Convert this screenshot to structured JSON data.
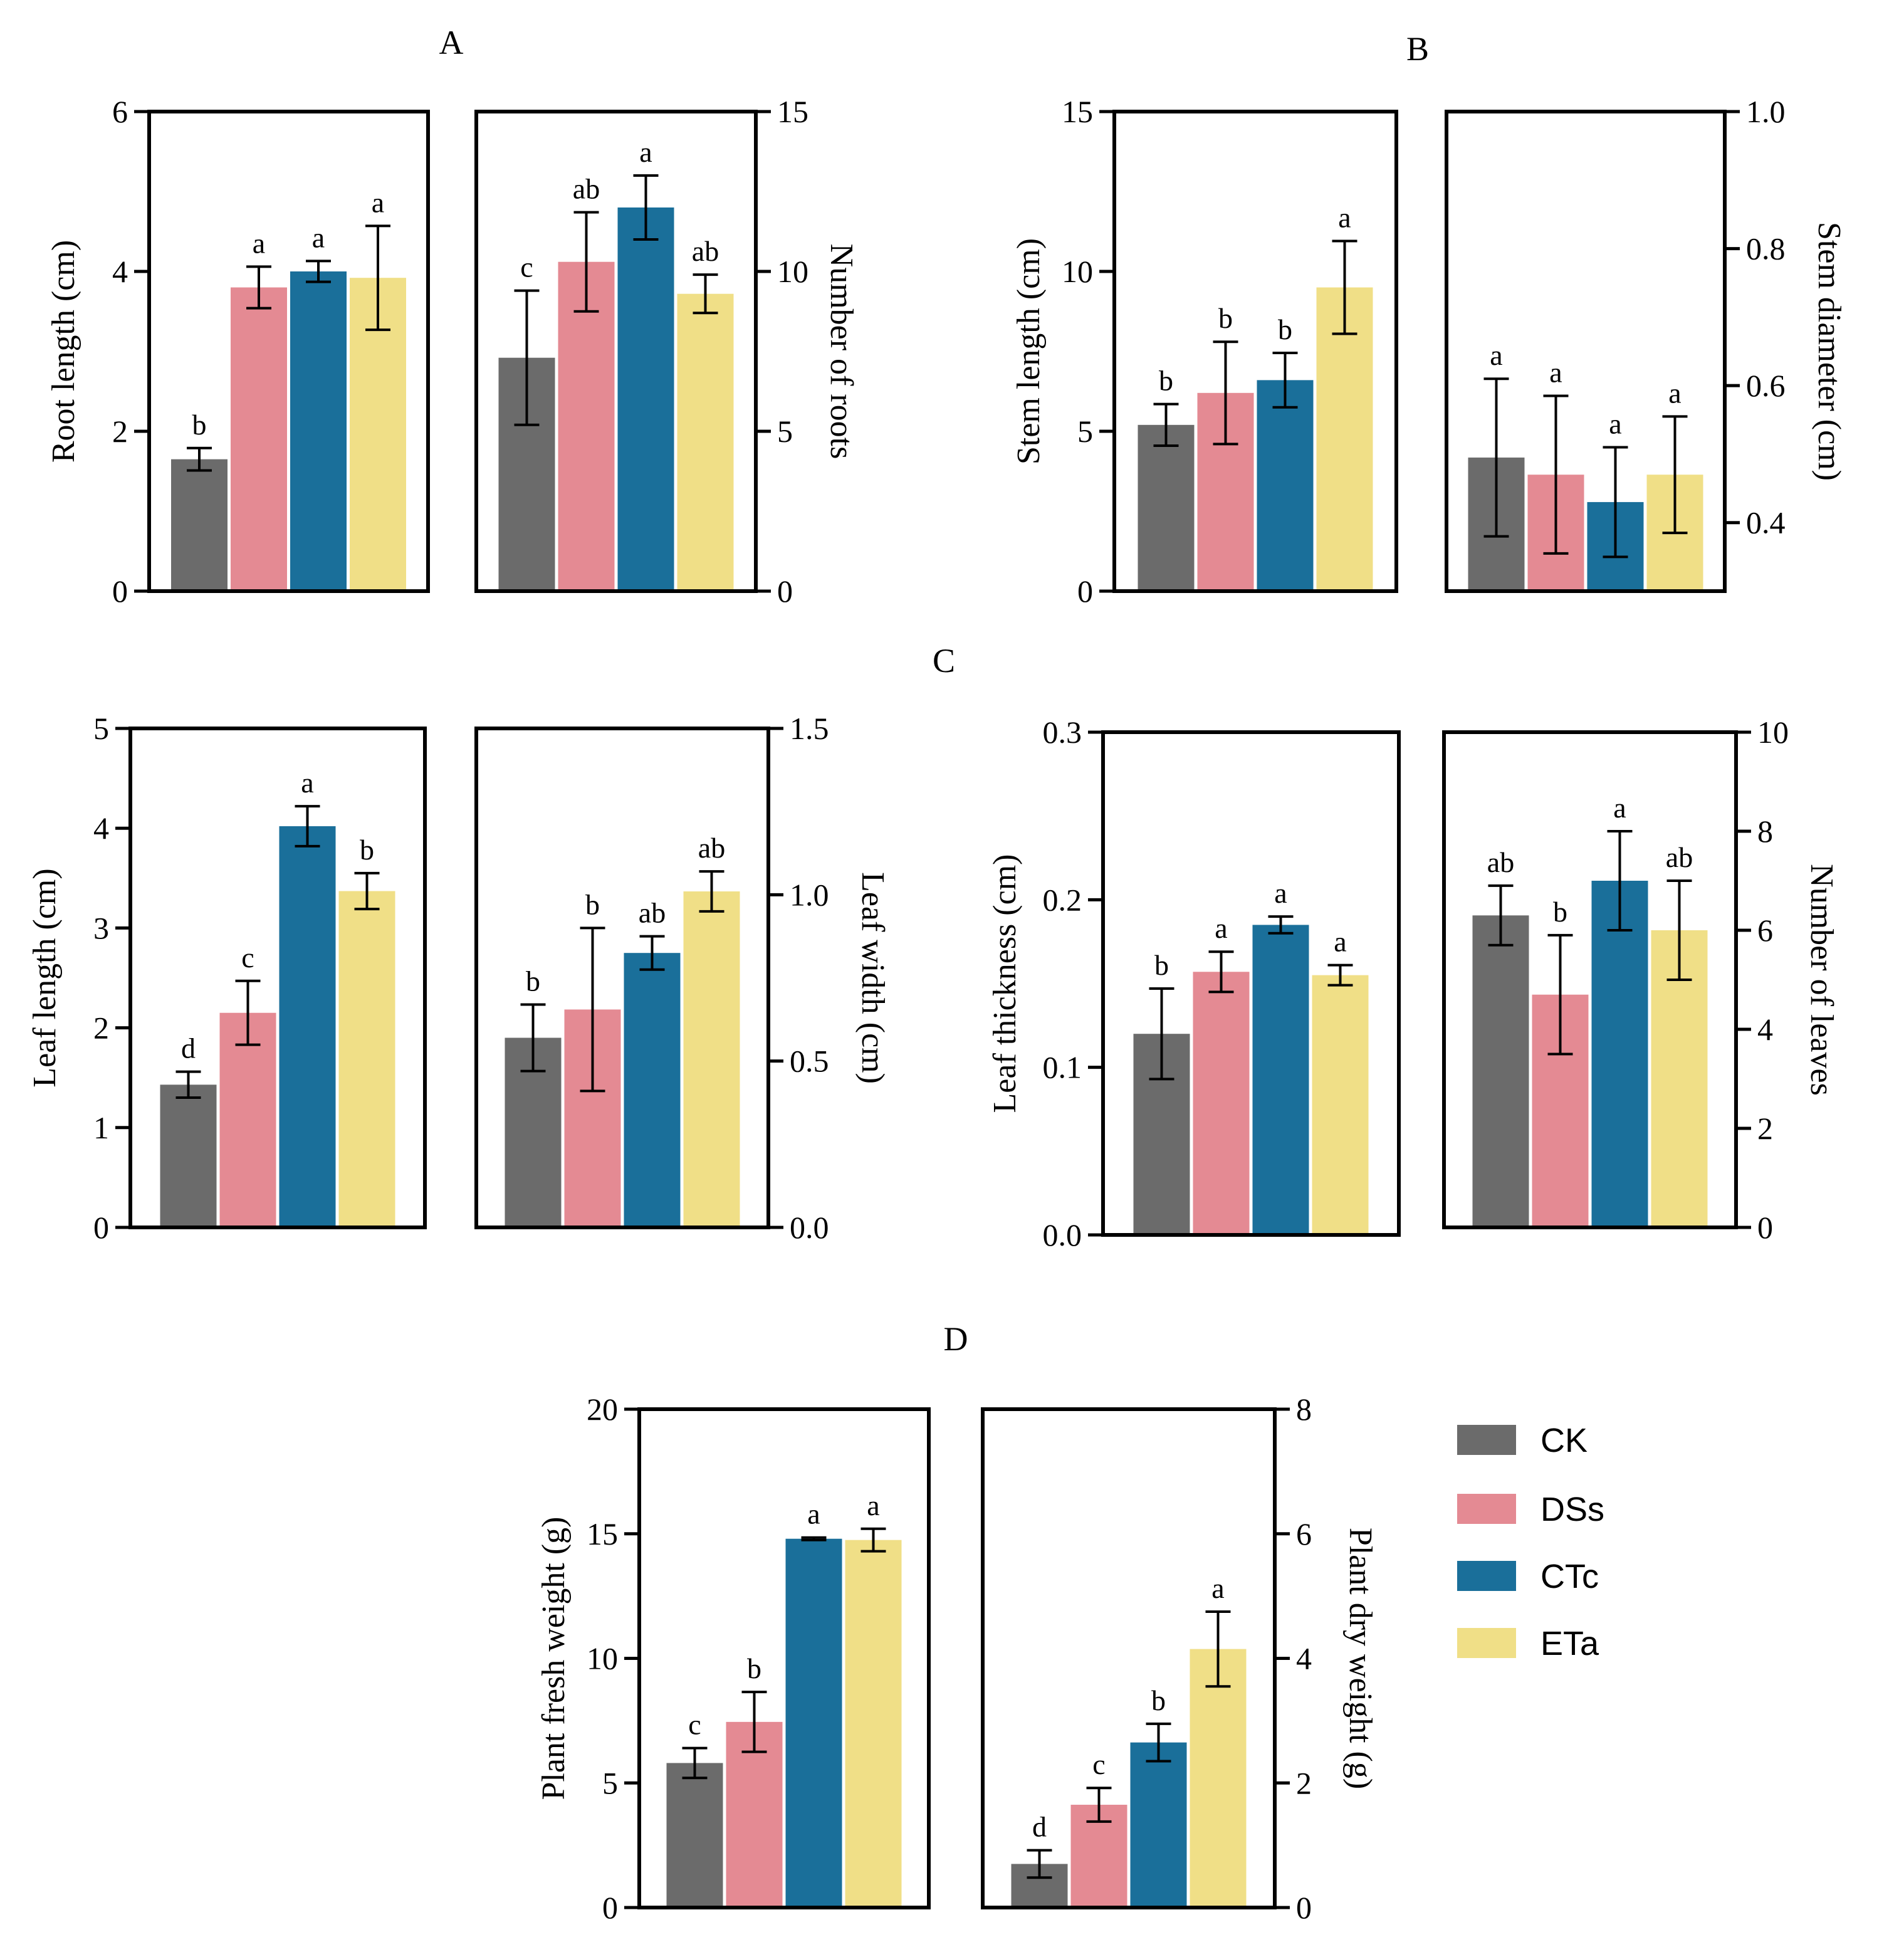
{
  "groups": [
    "CK",
    "DSs",
    "CTc",
    "ETa"
  ],
  "colors": {
    "CK": "#6b6b6b",
    "DSs": "#e48a93",
    "CTc": "#1a6f9a",
    "ETa": "#f0df87"
  },
  "legend": {
    "items": [
      {
        "label": "CK",
        "color": "#6b6b6b"
      },
      {
        "label": "DSs",
        "color": "#e48a93"
      },
      {
        "label": "CTc",
        "color": "#1a6f9a"
      },
      {
        "label": "ETa",
        "color": "#f0df87"
      }
    ]
  },
  "panel_letters": [
    "A",
    "B",
    "C",
    "D"
  ],
  "chart_data": [
    {
      "id": "root-length",
      "panel": "A",
      "type": "bar",
      "title": "",
      "ylabel": "Root length  (cm)",
      "axis_side": "left",
      "ylim": [
        0,
        6
      ],
      "ticks": [
        0,
        2,
        4,
        6
      ],
      "tick_labels": [
        "0",
        "2",
        "4",
        "6"
      ],
      "categories": [
        "CK",
        "DSs",
        "CTc",
        "ETa"
      ],
      "values": [
        1.65,
        3.8,
        4.0,
        3.92
      ],
      "errors": [
        0.14,
        0.26,
        0.13,
        0.65
      ],
      "letters": [
        "b",
        "a",
        "a",
        "a"
      ]
    },
    {
      "id": "number-of-roots",
      "panel": "A",
      "type": "bar",
      "title": "",
      "ylabel": "Number of roots",
      "axis_side": "right",
      "ylim": [
        0,
        15
      ],
      "ticks": [
        0,
        5,
        10,
        15
      ],
      "tick_labels": [
        "0",
        "5",
        "10",
        "15"
      ],
      "categories": [
        "CK",
        "DSs",
        "CTc",
        "ETa"
      ],
      "values": [
        7.3,
        10.3,
        12.0,
        9.3
      ],
      "errors": [
        2.1,
        1.55,
        1.0,
        0.6
      ],
      "letters": [
        "c",
        "ab",
        "a",
        "ab"
      ]
    },
    {
      "id": "stem-length",
      "panel": "B",
      "type": "bar",
      "title": "",
      "ylabel": "Stem length (cm)",
      "axis_side": "left",
      "ylim": [
        0,
        15
      ],
      "ticks": [
        0,
        5,
        10,
        15
      ],
      "tick_labels": [
        "0",
        "5",
        "10",
        "15"
      ],
      "categories": [
        "CK",
        "DSs",
        "CTc",
        "ETa"
      ],
      "values": [
        5.2,
        6.2,
        6.6,
        9.5
      ],
      "errors": [
        0.65,
        1.6,
        0.85,
        1.45
      ],
      "letters": [
        "b",
        "b",
        "b",
        "a"
      ]
    },
    {
      "id": "stem-diameter",
      "panel": "B",
      "type": "bar",
      "title": "",
      "ylabel": "Stem diameter (cm)",
      "axis_side": "right",
      "ylim": [
        0.3,
        1.0
      ],
      "ticks": [
        0.4,
        0.6,
        0.8,
        1.0
      ],
      "tick_labels": [
        "0.4",
        "0.6",
        "0.8",
        "1.0"
      ],
      "categories": [
        "CK",
        "DSs",
        "CTc",
        "ETa"
      ],
      "values": [
        0.495,
        0.47,
        0.43,
        0.47
      ],
      "errors": [
        0.115,
        0.115,
        0.08,
        0.085
      ],
      "letters": [
        "a",
        "a",
        "a",
        "a"
      ]
    },
    {
      "id": "leaf-length",
      "panel": "C",
      "type": "bar",
      "title": "",
      "ylabel": "Leaf length (cm)",
      "axis_side": "left",
      "ylim": [
        0,
        5
      ],
      "ticks": [
        0,
        1,
        2,
        3,
        4,
        5
      ],
      "tick_labels": [
        "0",
        "1",
        "2",
        "3",
        "4",
        "5"
      ],
      "categories": [
        "CK",
        "DSs",
        "CTc",
        "ETa"
      ],
      "values": [
        1.43,
        2.15,
        4.02,
        3.37
      ],
      "errors": [
        0.13,
        0.32,
        0.2,
        0.18
      ],
      "letters": [
        "d",
        "c",
        "a",
        "b"
      ]
    },
    {
      "id": "leaf-width",
      "panel": "C",
      "type": "bar",
      "title": "",
      "ylabel": "Leaf width  (cm)",
      "axis_side": "right",
      "ylim": [
        0,
        1.5
      ],
      "ticks": [
        0,
        0.5,
        1.0,
        1.5
      ],
      "tick_labels": [
        "0.0",
        "0.5",
        "1.0",
        "1.5"
      ],
      "categories": [
        "CK",
        "DSs",
        "CTc",
        "ETa"
      ],
      "values": [
        0.57,
        0.655,
        0.825,
        1.01
      ],
      "errors": [
        0.1,
        0.245,
        0.05,
        0.06
      ],
      "letters": [
        "b",
        "b",
        "ab",
        "ab"
      ]
    },
    {
      "id": "leaf-thickness",
      "panel": "C",
      "type": "bar",
      "title": "",
      "ylabel": "Leaf thickness  (cm)",
      "axis_side": "left",
      "ylim": [
        0,
        0.3
      ],
      "ticks": [
        0,
        0.1,
        0.2,
        0.3
      ],
      "tick_labels": [
        "0.0",
        "0.1",
        "0.2",
        "0.3"
      ],
      "categories": [
        "CK",
        "DSs",
        "CTc",
        "ETa"
      ],
      "values": [
        0.12,
        0.157,
        0.185,
        0.155
      ],
      "errors": [
        0.027,
        0.012,
        0.005,
        0.006
      ],
      "letters": [
        "b",
        "a",
        "a",
        "a"
      ]
    },
    {
      "id": "number-of-leaves",
      "panel": "C",
      "type": "bar",
      "title": "",
      "ylabel": "Number of leaves",
      "axis_side": "right",
      "ylim": [
        0,
        10
      ],
      "ticks": [
        0,
        2,
        4,
        6,
        8,
        10
      ],
      "tick_labels": [
        "0",
        "2",
        "4",
        "6",
        "8",
        "10"
      ],
      "categories": [
        "CK",
        "DSs",
        "CTc",
        "ETa"
      ],
      "values": [
        6.3,
        4.7,
        7.0,
        6.0
      ],
      "errors": [
        0.6,
        1.2,
        1.0,
        1.0
      ],
      "letters": [
        "ab",
        "b",
        "a",
        "ab"
      ]
    },
    {
      "id": "plant-fresh-weight",
      "panel": "D",
      "type": "bar",
      "title": "",
      "ylabel": "Plant fresh weight (g)",
      "axis_side": "left",
      "ylim": [
        0,
        20
      ],
      "ticks": [
        0,
        5,
        10,
        15,
        20
      ],
      "tick_labels": [
        "0",
        "5",
        "10",
        "15",
        "20"
      ],
      "categories": [
        "CK",
        "DSs",
        "CTc",
        "ETa"
      ],
      "values": [
        5.8,
        7.45,
        14.8,
        14.75
      ],
      "errors": [
        0.6,
        1.2,
        0.05,
        0.45
      ],
      "letters": [
        "c",
        "b",
        "a",
        "a"
      ]
    },
    {
      "id": "plant-dry-weight",
      "panel": "D",
      "type": "bar",
      "title": "",
      "ylabel": "Plant dry weight (g)",
      "axis_side": "right",
      "ylim": [
        0,
        8
      ],
      "ticks": [
        0,
        2,
        4,
        6,
        8
      ],
      "tick_labels": [
        "0",
        "2",
        "4",
        "6",
        "8"
      ],
      "categories": [
        "CK",
        "DSs",
        "CTc",
        "ETa"
      ],
      "values": [
        0.7,
        1.65,
        2.65,
        4.15
      ],
      "errors": [
        0.22,
        0.27,
        0.3,
        0.6
      ],
      "letters": [
        "d",
        "c",
        "b",
        "a"
      ]
    }
  ]
}
